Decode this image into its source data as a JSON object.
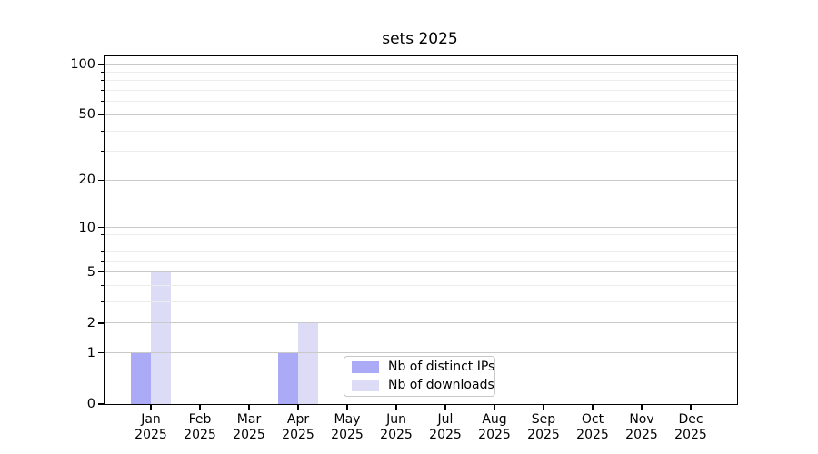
{
  "chart_data": {
    "type": "bar",
    "title": "sets 2025",
    "xlabel": "",
    "ylabel": "",
    "year": "2025",
    "months": [
      "Jan",
      "Feb",
      "Mar",
      "Apr",
      "May",
      "Jun",
      "Jul",
      "Aug",
      "Sep",
      "Oct",
      "Nov",
      "Dec"
    ],
    "categories": [
      "Jan 2025",
      "Feb 2025",
      "Mar 2025",
      "Apr 2025",
      "May 2025",
      "Jun 2025",
      "Jul 2025",
      "Aug 2025",
      "Sep 2025",
      "Oct 2025",
      "Nov 2025",
      "Dec 2025"
    ],
    "series": [
      {
        "name": "Nb of distinct IPs",
        "color": "#aaaaf7",
        "values": [
          1,
          0,
          0,
          1,
          0,
          0,
          0,
          0,
          0,
          0,
          0,
          0
        ]
      },
      {
        "name": "Nb of downloads",
        "color": "#dcdcf7",
        "values": [
          5,
          0,
          0,
          2,
          0,
          0,
          0,
          0,
          0,
          0,
          0,
          0
        ]
      }
    ],
    "yscale": "log1p",
    "ylim": [
      0,
      112
    ],
    "y_major_ticks": [
      0,
      1,
      2,
      5,
      10,
      20,
      50,
      100
    ],
    "y_minor_ticks": [
      3,
      4,
      6,
      7,
      8,
      9,
      30,
      40,
      60,
      70,
      80,
      90
    ],
    "grid": true,
    "legend_position": "lower center",
    "colors": {
      "major_grid": "#c9c9c9",
      "minor_grid": "#ececec",
      "axis": "#000000",
      "text": "#000000",
      "background": "#ffffff"
    }
  }
}
